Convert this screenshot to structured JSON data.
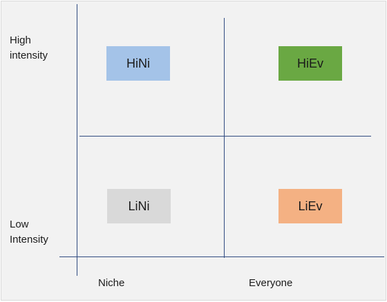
{
  "axes": {
    "y_top": [
      "High",
      "intensity"
    ],
    "y_bottom": [
      "Low",
      "Intensity"
    ],
    "x_left": "Niche",
    "x_right": "Everyone"
  },
  "quadrants": {
    "top_left": {
      "label": "HiNi",
      "color": "#a4c3e8"
    },
    "top_right": {
      "label": "HiEv",
      "color": "#6aa843"
    },
    "bottom_left": {
      "label": "LiNi",
      "color": "#d9d9d9"
    },
    "bottom_right": {
      "label": "LiEv",
      "color": "#f4b183"
    }
  },
  "colors": {
    "background": "#f2f2f2",
    "line": "#2f4a80"
  }
}
